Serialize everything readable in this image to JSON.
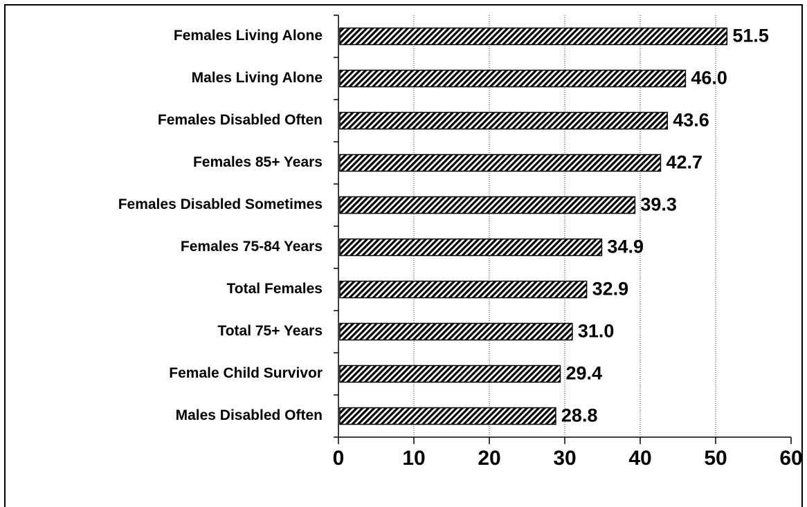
{
  "chart_data": {
    "type": "bar",
    "orientation": "horizontal",
    "categories": [
      "Females Living Alone",
      "Males Living Alone",
      "Females Disabled Often",
      "Females 85+ Years",
      "Females Disabled Sometimes",
      "Females 75-84 Years",
      "Total Females",
      "Total 75+ Years",
      "Female Child Survivor",
      "Males Disabled Often"
    ],
    "values": [
      51.5,
      46.0,
      43.6,
      42.7,
      39.3,
      34.9,
      32.9,
      31.0,
      29.4,
      28.8
    ],
    "value_labels": [
      "51.5",
      "46.0",
      "43.6",
      "42.7",
      "39.3",
      "34.9",
      "32.9",
      "31.0",
      "29.4",
      "28.8"
    ],
    "color": "#000000",
    "xlim": [
      0,
      60
    ],
    "xticks": [
      0,
      10,
      20,
      30,
      40,
      50,
      60
    ],
    "grid": true
  }
}
